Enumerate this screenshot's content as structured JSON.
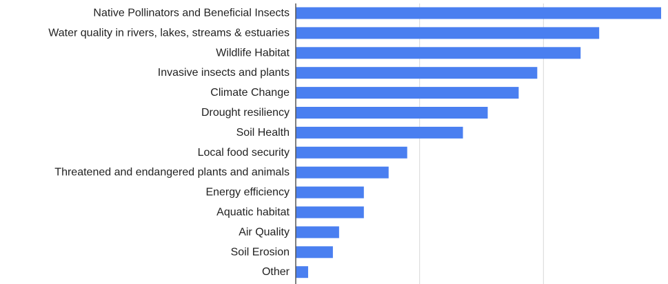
{
  "chart_data": {
    "type": "bar",
    "orientation": "horizontal",
    "title": "",
    "xlabel": "",
    "ylabel": "",
    "categories": [
      "Native Pollinators and Beneficial Insects",
      "Water quality in rivers, lakes, streams & estuaries",
      "Wildlife Habitat",
      "Invasive insects and plants",
      "Climate Change",
      "Drought resiliency",
      "Soil Health",
      "Local food security",
      "Threatened and endangered plants and animals",
      "Energy efficiency",
      "Aquatic habitat",
      "Air Quality",
      "Soil Erosion",
      "Other"
    ],
    "values": [
      59,
      49,
      46,
      39,
      36,
      31,
      27,
      18,
      15,
      11,
      11,
      7,
      6,
      2
    ],
    "xlim": [
      0,
      60
    ],
    "gridlines": [
      20,
      40
    ],
    "grid": true,
    "legend": "none",
    "bar_color": "#4a7ff0",
    "gridline_color": "#d8d8d8",
    "axis_color": "#555555"
  }
}
